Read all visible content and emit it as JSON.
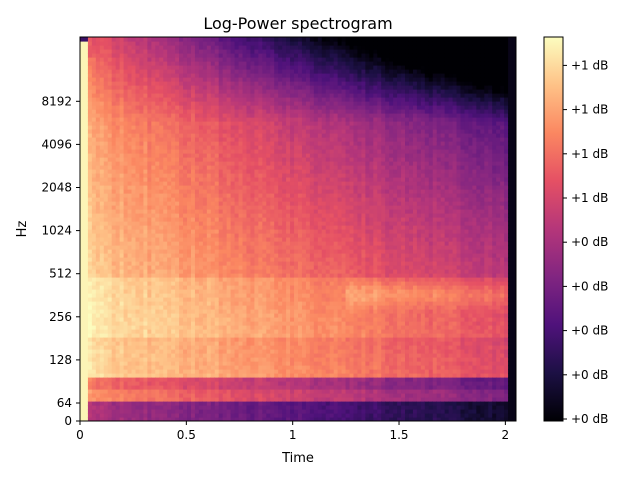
{
  "chart_data": {
    "type": "heatmap",
    "title": "Log-Power spectrogram",
    "xlabel": "Time",
    "ylabel": "Hz",
    "x_axis": {
      "ticks": [
        0,
        0.5,
        1,
        1.5,
        2
      ],
      "tick_labels": [
        "0",
        "0.5",
        "1",
        "1.5",
        "2"
      ],
      "range": [
        0,
        2.05
      ]
    },
    "y_axis": {
      "scale": "log2-like (mel)",
      "ticks": [
        0,
        64,
        128,
        256,
        512,
        1024,
        2048,
        4096,
        8192
      ],
      "tick_labels": [
        "0",
        "64",
        "128",
        "256",
        "512",
        "1024",
        "2048",
        "4096",
        "8192"
      ]
    },
    "colormap": "magma",
    "colormap_stops": [
      "#000004",
      "#1c1044",
      "#4f127b",
      "#812581",
      "#b5367a",
      "#e55064",
      "#fb8761",
      "#fec287",
      "#fcfdbf"
    ],
    "colorbar": {
      "tick_labels": [
        "+0 dB",
        "+0 dB",
        "+0 dB",
        "+0 dB",
        "+0 dB",
        "+1 dB",
        "+1 dB",
        "+1 dB",
        "+1 dB"
      ]
    },
    "grid": false
  }
}
